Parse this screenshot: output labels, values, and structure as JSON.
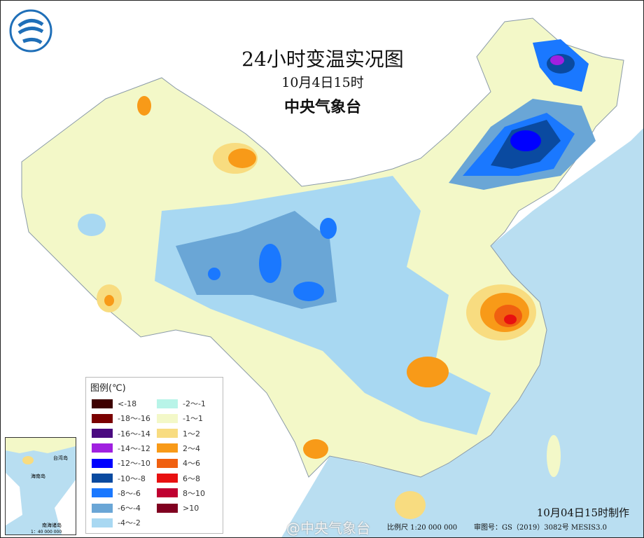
{
  "title": "24小时变温实况图",
  "subtitle": "10月4日15时",
  "issuer": "中央气象台",
  "logo_text": "气",
  "legend": {
    "title": "图例(℃)",
    "items": [
      {
        "label": "<-18",
        "color": "#3d0000"
      },
      {
        "label": "-18～-16",
        "color": "#7a0000"
      },
      {
        "label": "-16～-14",
        "color": "#4a0a80"
      },
      {
        "label": "-14～-12",
        "color": "#a020e0"
      },
      {
        "label": "-12～-10",
        "color": "#0000ff"
      },
      {
        "label": "-10～-8",
        "color": "#0a4aa0"
      },
      {
        "label": "-8～-6",
        "color": "#1a78ff"
      },
      {
        "label": "-6～-4",
        "color": "#6aa6d6"
      },
      {
        "label": "-4～-2",
        "color": "#a8d8f2"
      },
      {
        "label": "-2～-1",
        "color": "#b8f4e8"
      },
      {
        "label": "-1～1",
        "color": "#f3f8c8"
      },
      {
        "label": "1～2",
        "color": "#f8dc80"
      },
      {
        "label": "2～4",
        "color": "#f89a18"
      },
      {
        "label": "4～6",
        "color": "#f06010"
      },
      {
        "label": "6～8",
        "color": "#e81010"
      },
      {
        "label": "8～10",
        "color": "#c00030"
      },
      {
        "label": ">10",
        "color": "#800020"
      }
    ]
  },
  "inset": {
    "labels": [
      "台湾岛",
      "海南岛",
      "南海诸岛"
    ],
    "scale": "1：40 000 000"
  },
  "footer": {
    "made": "10月04日15时制作",
    "scale": "比例尺 1:20 000 000",
    "review": "审图号：GS（2019）3082号 MESIS3.0",
    "watermark": "@中央气象台"
  },
  "colors": {
    "sea": "#b9def1",
    "land_base": "#f3f8c8"
  }
}
